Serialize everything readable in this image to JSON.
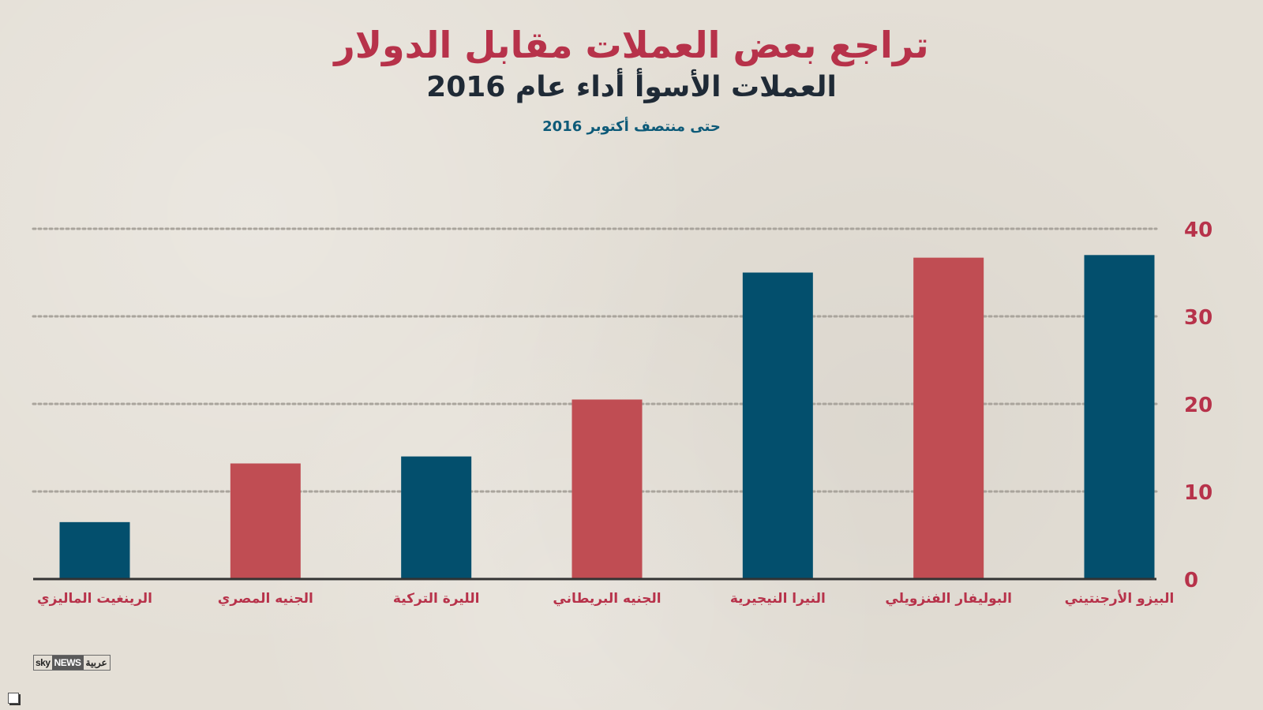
{
  "header": {
    "title": "تراجع بعض العملات مقابل الدولار",
    "subtitle": "العملات الأسوأ أداء عام 2016",
    "note": "حتى منتصف أكتوبر 2016"
  },
  "logo": {
    "sky": "sky",
    "news": "NEWS",
    "arabic": "عربية"
  },
  "colors": {
    "blue": "#034f6d",
    "red": "#c04d53",
    "tick": "#b7324a",
    "axis": "#333333"
  },
  "chart_data": {
    "type": "bar",
    "categories": [
      "البيزو الأرجنتيني",
      "البوليفار الفنزويلي",
      "النيرا النيجيرية",
      "الجنيه البريطاني",
      "الليرة التركية",
      "الجنيه المصري",
      "الرينغيت الماليزي"
    ],
    "values": [
      37,
      36.7,
      35,
      20.5,
      14,
      13.2,
      6.5
    ],
    "bar_colors": [
      "#034f6d",
      "#c04d53",
      "#034f6d",
      "#c04d53",
      "#034f6d",
      "#c04d53",
      "#034f6d"
    ],
    "yticks": [
      "0",
      "10",
      "20",
      "30",
      "40"
    ],
    "ylim": [
      0,
      40
    ],
    "y_axis_side": "right",
    "grid": "dotted horizontal",
    "order": "right-to-left"
  }
}
